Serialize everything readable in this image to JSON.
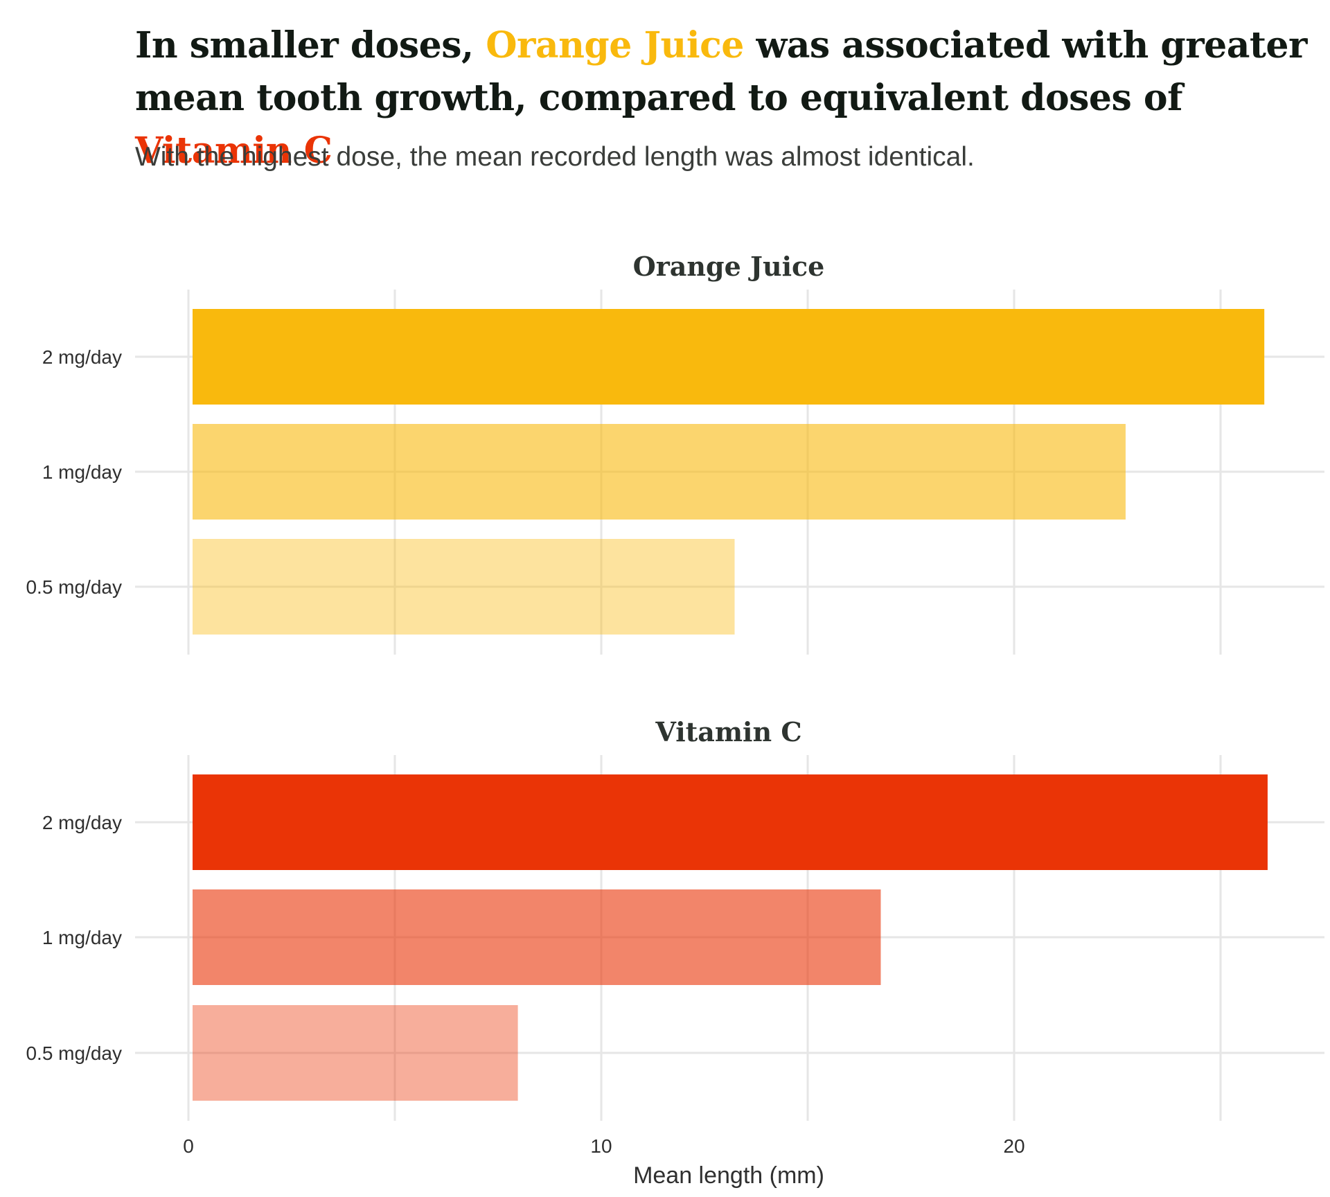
{
  "title": {
    "part1": "In smaller doses, ",
    "oj": "Orange Juice",
    "part2": " was associated with greater mean tooth growth, compared to equivalent doses of ",
    "vc": "Vitamin C"
  },
  "subtitle": "With the highest dose, the mean recorded length was almost identical.",
  "colors": {
    "oj": "#F9B90D",
    "vc": "#EA3406",
    "title_text": "#121a14"
  },
  "chart_data": {
    "type": "bar",
    "orientation": "horizontal",
    "xlabel": "Mean length (mm)",
    "xlim": [
      0,
      26.5
    ],
    "xticks": [
      0,
      10,
      20
    ],
    "grid": true,
    "categories": [
      "2 mg/day",
      "1 mg/day",
      "0.5 mg/day"
    ],
    "facets": [
      {
        "name": "Orange Juice",
        "color": "#F9B90D",
        "opacity": [
          1.0,
          0.6,
          0.4
        ],
        "values": [
          26.06,
          22.7,
          13.23
        ]
      },
      {
        "name": "Vitamin C",
        "color": "#EA3406",
        "opacity": [
          1.0,
          0.6,
          0.4
        ],
        "values": [
          26.14,
          16.77,
          7.98
        ]
      }
    ]
  }
}
